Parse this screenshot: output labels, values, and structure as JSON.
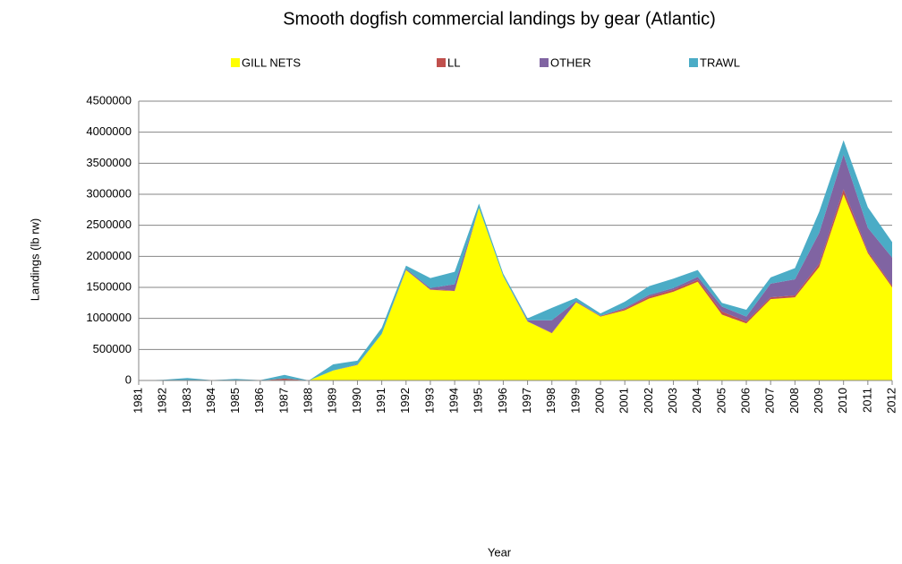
{
  "chart_data": {
    "type": "stacked_area",
    "title": "Smooth dogfish commercial landings by gear (Atlantic)",
    "xlabel": "Year",
    "ylabel": "Landings (lb rw)",
    "categories": [
      "1981",
      "1982",
      "1983",
      "1984",
      "1985",
      "1986",
      "1987",
      "1988",
      "1989",
      "1990",
      "1991",
      "1992",
      "1993",
      "1994",
      "1995",
      "1996",
      "1997",
      "1998",
      "1999",
      "2000",
      "2001",
      "2002",
      "2003",
      "2004",
      "2005",
      "2006",
      "2007",
      "2008",
      "2009",
      "2010",
      "2011",
      "2012"
    ],
    "series": [
      {
        "name": "GILL NETS",
        "color": "#ffff00",
        "values": [
          0,
          0,
          0,
          0,
          0,
          0,
          0,
          0,
          160000,
          250000,
          750000,
          1780000,
          1460000,
          1440000,
          2780000,
          1680000,
          950000,
          760000,
          1260000,
          1030000,
          1130000,
          1320000,
          1430000,
          1590000,
          1060000,
          920000,
          1310000,
          1340000,
          1830000,
          3000000,
          2050000,
          1500000
        ]
      },
      {
        "name": "LL",
        "color": "#c0504d",
        "values": [
          0,
          0,
          0,
          0,
          5000,
          0,
          30000,
          0,
          0,
          0,
          0,
          0,
          10000,
          10000,
          0,
          0,
          0,
          10000,
          0,
          10000,
          20000,
          30000,
          30000,
          30000,
          50000,
          30000,
          30000,
          30000,
          50000,
          80000,
          30000,
          30000
        ]
      },
      {
        "name": "OTHER",
        "color": "#8064a2",
        "values": [
          0,
          0,
          0,
          0,
          0,
          0,
          0,
          0,
          0,
          10000,
          0,
          20000,
          20000,
          100000,
          0,
          0,
          20000,
          200000,
          20000,
          0,
          20000,
          30000,
          30000,
          50000,
          80000,
          80000,
          220000,
          260000,
          500000,
          560000,
          380000,
          450000
        ]
      },
      {
        "name": "TRAWL",
        "color": "#4bacc6",
        "values": [
          0,
          10000,
          40000,
          5000,
          20000,
          5000,
          60000,
          0,
          100000,
          60000,
          100000,
          50000,
          160000,
          200000,
          70000,
          40000,
          30000,
          200000,
          50000,
          40000,
          100000,
          140000,
          150000,
          110000,
          60000,
          110000,
          100000,
          180000,
          340000,
          230000,
          330000,
          250000
        ]
      }
    ],
    "ylim": [
      0,
      4500000
    ],
    "yticks": [
      0,
      500000,
      1000000,
      1500000,
      2000000,
      2500000,
      3000000,
      3500000,
      4000000,
      4500000
    ],
    "grid": true,
    "legend": "top"
  }
}
